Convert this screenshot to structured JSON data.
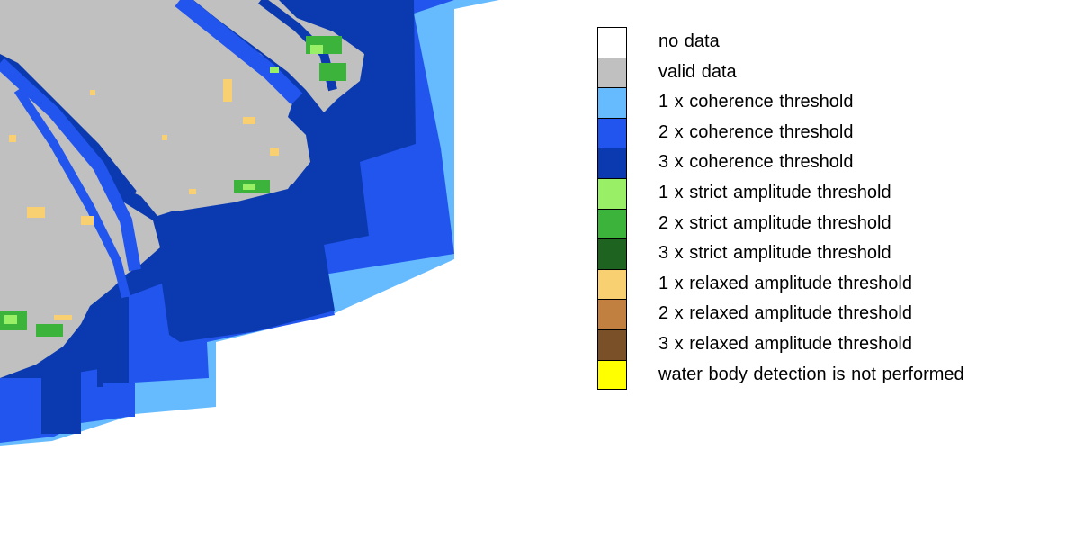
{
  "legend": {
    "items": [
      {
        "label": "no data",
        "color": "#ffffff"
      },
      {
        "label": "valid data",
        "color": "#c0c0c0"
      },
      {
        "label": "1 x coherence threshold",
        "color": "#66bbff"
      },
      {
        "label": "2 x coherence threshold",
        "color": "#2255ee"
      },
      {
        "label": "3 x coherence threshold",
        "color": "#0b3ab0"
      },
      {
        "label": "1 x strict amplitude threshold",
        "color": "#99f066"
      },
      {
        "label": "2 x strict amplitude threshold",
        "color": "#3cb43c"
      },
      {
        "label": "3 x strict amplitude threshold",
        "color": "#1e6420"
      },
      {
        "label": "1 x relaxed amplitude threshold",
        "color": "#f8d072"
      },
      {
        "label": "2 x relaxed amplitude threshold",
        "color": "#c28040"
      },
      {
        "label": "3 x relaxed amplitude threshold",
        "color": "#7a5028"
      },
      {
        "label": "water body detection is not performed",
        "color": "#ffff00"
      }
    ]
  }
}
